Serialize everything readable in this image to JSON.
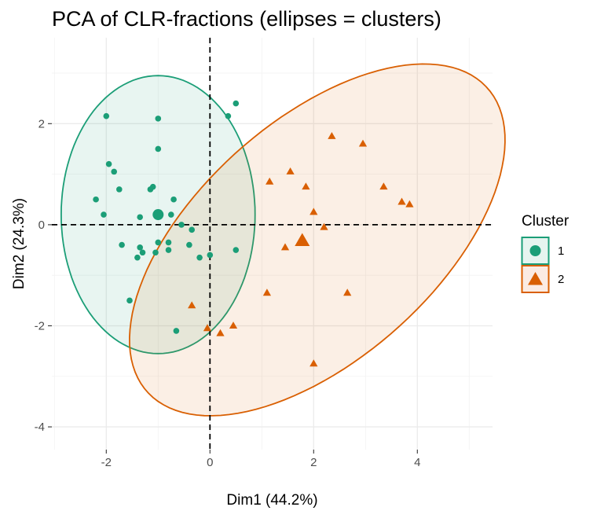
{
  "chart_data": {
    "type": "scatter",
    "title": "PCA of CLR-fractions (ellipses = clusters)",
    "xlabel": "Dim1 (44.2%)",
    "ylabel": "Dim2 (24.3%)",
    "xlim": [
      -3.05,
      5.45
    ],
    "ylim": [
      -4.45,
      3.7
    ],
    "x_ticks": [
      -2,
      0,
      2,
      4
    ],
    "y_ticks": [
      -4,
      -2,
      0,
      2
    ],
    "x_tick_labels": [
      "-2",
      "0",
      "2",
      "4"
    ],
    "y_tick_labels": [
      "-4",
      "-2",
      "0",
      "2"
    ],
    "grid": true,
    "reference_lines": {
      "x": 0,
      "y": 0,
      "style": "dashed"
    },
    "legend": {
      "title": "Cluster",
      "position": "right"
    },
    "series": [
      {
        "name": "1",
        "shape": "circle",
        "color": "#1b9e77",
        "fill": "#e6f4ef",
        "centroid": [
          -1.0,
          0.2
        ],
        "ellipse": {
          "cx": -1.0,
          "cy": 0.2,
          "rx": 1.87,
          "ry": 2.75,
          "angle": 0
        },
        "points": [
          [
            -2.0,
            2.15
          ],
          [
            -1.0,
            2.1
          ],
          [
            0.35,
            2.15
          ],
          [
            0.5,
            2.4
          ],
          [
            -1.0,
            1.5
          ],
          [
            -1.95,
            1.2
          ],
          [
            -1.85,
            1.05
          ],
          [
            -1.75,
            0.7
          ],
          [
            -1.1,
            0.75
          ],
          [
            -1.15,
            0.7
          ],
          [
            -0.7,
            0.5
          ],
          [
            -2.2,
            0.5
          ],
          [
            -2.05,
            0.2
          ],
          [
            -0.75,
            0.2
          ],
          [
            -1.35,
            0.15
          ],
          [
            -0.55,
            0.0
          ],
          [
            -0.35,
            -0.1
          ],
          [
            -1.7,
            -0.4
          ],
          [
            -1.35,
            -0.45
          ],
          [
            -1.0,
            -0.35
          ],
          [
            -0.8,
            -0.35
          ],
          [
            -0.4,
            -0.4
          ],
          [
            -1.3,
            -0.55
          ],
          [
            -1.05,
            -0.55
          ],
          [
            -0.8,
            -0.5
          ],
          [
            -1.4,
            -0.65
          ],
          [
            -0.2,
            -0.65
          ],
          [
            0.0,
            -0.6
          ],
          [
            0.5,
            -0.5
          ],
          [
            -1.55,
            -1.5
          ],
          [
            -0.65,
            -2.1
          ]
        ]
      },
      {
        "name": "2",
        "shape": "triangle",
        "color": "#d95f02",
        "fill": "#fbebe3",
        "centroid": [
          1.78,
          -0.32
        ],
        "ellipse": {
          "cx": 2.07,
          "cy": -0.3,
          "rx": 4.45,
          "ry": 2.33,
          "angle": 43
        },
        "points": [
          [
            2.35,
            1.75
          ],
          [
            2.95,
            1.6
          ],
          [
            1.55,
            1.05
          ],
          [
            1.15,
            0.85
          ],
          [
            1.85,
            0.75
          ],
          [
            3.35,
            0.75
          ],
          [
            3.7,
            0.45
          ],
          [
            3.85,
            0.4
          ],
          [
            2.0,
            0.25
          ],
          [
            2.2,
            -0.05
          ],
          [
            1.45,
            -0.45
          ],
          [
            1.1,
            -1.35
          ],
          [
            2.65,
            -1.35
          ],
          [
            -0.35,
            -1.6
          ],
          [
            -0.05,
            -2.05
          ],
          [
            0.45,
            -2.0
          ],
          [
            0.2,
            -2.15
          ],
          [
            2.0,
            -2.75
          ]
        ]
      }
    ]
  }
}
